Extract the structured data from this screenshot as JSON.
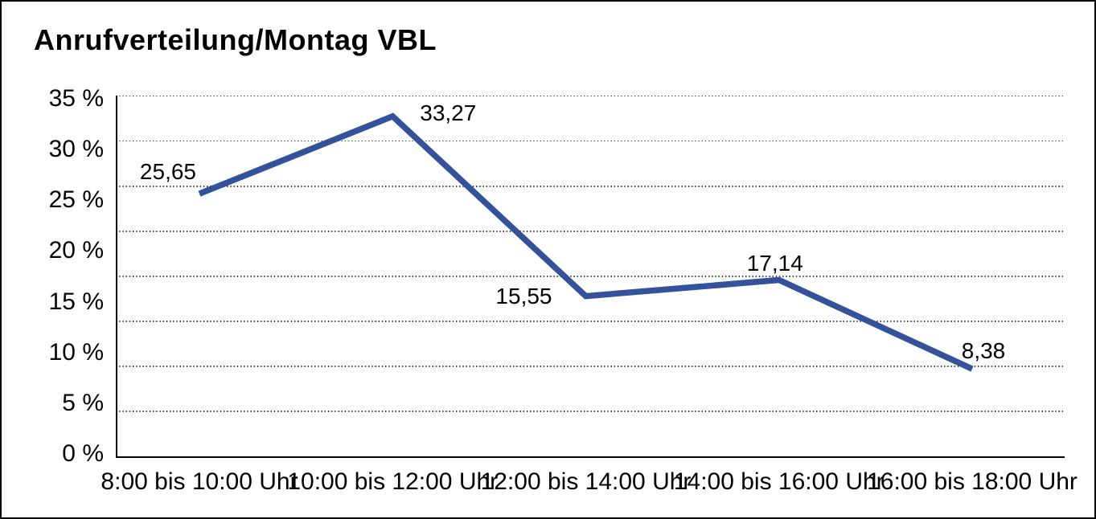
{
  "title": "Anrufverteilung/Montag VBL",
  "colors": {
    "line": "#34519C",
    "text": "#000000",
    "background": "#FFFFFF",
    "border": "#000000",
    "gridline": "#3A3A3A"
  },
  "chart_data": {
    "type": "line",
    "title": "Anrufverteilung/Montag VBL",
    "categories": [
      "8:00 bis 10:00 Uhr",
      "10:00 bis 12:00 Uhr",
      "12:00 bis 14:00 Uhr",
      "14:00 bis 16:00 Uhr",
      "16:00 bis 18:00 Uhr"
    ],
    "values": [
      25.65,
      33.27,
      15.55,
      17.14,
      8.38
    ],
    "point_labels": [
      "25,65",
      "33,27",
      "15,55",
      "17,14",
      "8,38"
    ],
    "xlabel": "",
    "ylabel": "",
    "ylim": [
      0,
      35
    ],
    "y_tick_values": [
      0,
      5,
      10,
      15,
      20,
      25,
      30,
      35
    ],
    "y_tick_labels": [
      "0 %",
      "5 %",
      "10 %",
      "15 %",
      "20 %",
      "25 %",
      "30 %",
      "35 %"
    ],
    "grid": "horizontal-dotted",
    "legend_position": "none",
    "series_name": "Anrufverteilung Montag VBL"
  }
}
